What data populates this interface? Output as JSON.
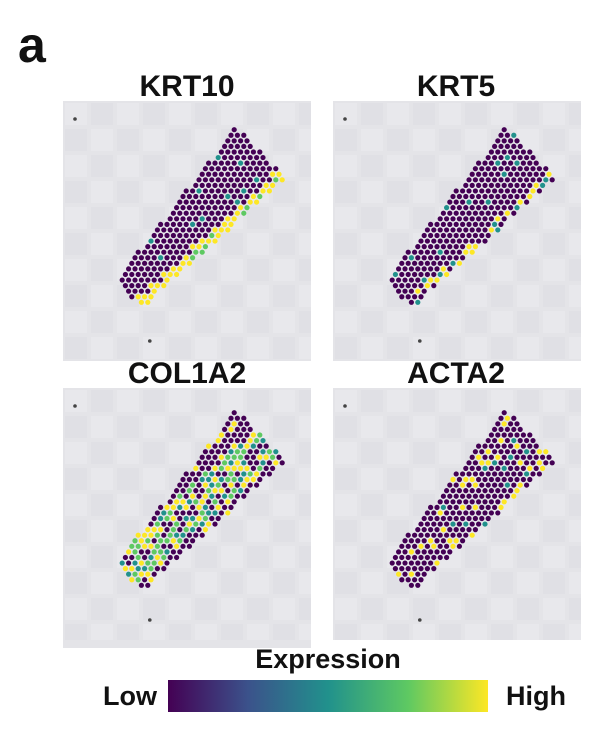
{
  "figure": {
    "panel_label": "a",
    "panels": [
      {
        "gene": "KRT10",
        "pattern": "top-edge"
      },
      {
        "gene": "KRT5",
        "pattern": "top-patchy"
      },
      {
        "gene": "COL1A2",
        "pattern": "interior"
      },
      {
        "gene": "ACTA2",
        "pattern": "sparse"
      }
    ]
  },
  "legend": {
    "title": "Expression",
    "low_label": "Low",
    "high_label": "High",
    "colors": [
      "#440154",
      "#3b528b",
      "#21918c",
      "#5ec962",
      "#fde725"
    ]
  }
}
